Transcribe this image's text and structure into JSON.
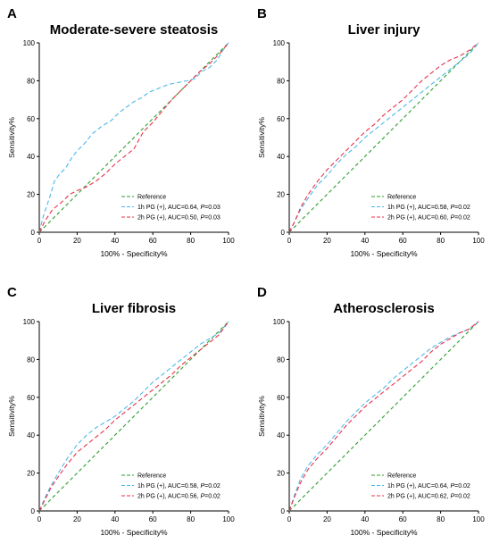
{
  "chart_data": [
    {
      "panel_label": "A",
      "type": "line",
      "title": "Moderate-severe steatosis",
      "xlabel": "100% - Specificity%",
      "ylabel": "Sensitivity%",
      "xlim": [
        0,
        100
      ],
      "ylim": [
        0,
        100
      ],
      "xticks": [
        "0",
        "20",
        "40",
        "60",
        "80",
        "100"
      ],
      "yticks": [
        "0",
        "20",
        "40",
        "60",
        "80",
        "100"
      ],
      "legend": "bottom-right",
      "series": [
        {
          "name": "Reference",
          "color": "#2e9e2e",
          "x": [
            0,
            100
          ],
          "y": [
            0,
            100
          ]
        },
        {
          "name": "1h PG (+), AUC=0.64, P=0.03",
          "label_pre": "1h PG (+), AUC=0.64, ",
          "label_p": "P",
          "label_post": "=0.03",
          "color": "#4db8e8",
          "x": [
            0,
            2,
            4,
            6,
            8,
            11,
            14,
            17,
            20,
            24,
            28,
            33,
            38,
            42,
            46,
            50,
            54,
            58,
            63,
            68,
            73,
            78,
            82,
            86,
            90,
            94,
            97,
            100
          ],
          "y": [
            0,
            8,
            14,
            20,
            27,
            31,
            34,
            39,
            43,
            47,
            52,
            56,
            59,
            63,
            66,
            69,
            71,
            74,
            76,
            78,
            79,
            80,
            81,
            85,
            87,
            91,
            96,
            100
          ]
        },
        {
          "name": "2h PG (+), AUC=0.50, P=0.03",
          "label_pre": "2h PG (+), AUC=0.50, ",
          "label_p": "P",
          "label_post": "=0.03",
          "color": "#e8304a",
          "x": [
            0,
            3,
            7,
            12,
            16,
            20,
            25,
            30,
            35,
            40,
            45,
            50,
            55,
            60,
            65,
            70,
            75,
            80,
            85,
            90,
            95,
            100
          ],
          "y": [
            0,
            6,
            12,
            16,
            20,
            22,
            24,
            27,
            31,
            36,
            40,
            44,
            53,
            58,
            64,
            70,
            75,
            80,
            85,
            89,
            94,
            100
          ]
        }
      ]
    },
    {
      "panel_label": "B",
      "type": "line",
      "title": "Liver injury",
      "xlabel": "100% - Specificity%",
      "ylabel": "Sensitivity%",
      "xlim": [
        0,
        100
      ],
      "ylim": [
        0,
        100
      ],
      "xticks": [
        "0",
        "20",
        "40",
        "60",
        "80",
        "100"
      ],
      "yticks": [
        "0",
        "20",
        "40",
        "60",
        "80",
        "100"
      ],
      "legend": "bottom-right",
      "series": [
        {
          "name": "Reference",
          "color": "#2e9e2e",
          "x": [
            0,
            100
          ],
          "y": [
            0,
            100
          ]
        },
        {
          "name": "1h PG (+), AUC=0.58, P=0.02",
          "label_pre": "1h PG (+), AUC=0.58, ",
          "label_p": "P",
          "label_post": "=0.02",
          "color": "#4db8e8",
          "x": [
            0,
            3,
            6,
            10,
            15,
            20,
            25,
            30,
            35,
            40,
            45,
            50,
            55,
            60,
            65,
            70,
            75,
            80,
            85,
            90,
            95,
            100
          ],
          "y": [
            0,
            6,
            12,
            18,
            25,
            30,
            36,
            41,
            45,
            50,
            54,
            58,
            62,
            66,
            70,
            74,
            78,
            82,
            86,
            90,
            94,
            100
          ]
        },
        {
          "name": "2h PG (+), AUC=0.60, P=0.02",
          "label_pre": "2h PG (+), AUC=0.60, ",
          "label_p": "P",
          "label_post": "=0.02",
          "color": "#e8304a",
          "x": [
            0,
            3,
            6,
            10,
            15,
            20,
            25,
            30,
            35,
            40,
            45,
            50,
            55,
            60,
            65,
            70,
            75,
            80,
            85,
            90,
            95,
            100
          ],
          "y": [
            0,
            6,
            13,
            20,
            27,
            33,
            38,
            43,
            48,
            53,
            57,
            62,
            66,
            70,
            75,
            80,
            84,
            88,
            91,
            93,
            96,
            100
          ]
        }
      ]
    },
    {
      "panel_label": "C",
      "type": "line",
      "title": "Liver fibrosis",
      "xlabel": "100% - Specificity%",
      "ylabel": "Sensitivity%",
      "xlim": [
        0,
        100
      ],
      "ylim": [
        0,
        100
      ],
      "xticks": [
        "0",
        "20",
        "40",
        "60",
        "80",
        "100"
      ],
      "yticks": [
        "0",
        "20",
        "40",
        "60",
        "80",
        "100"
      ],
      "legend": "bottom-right",
      "series": [
        {
          "name": "Reference",
          "color": "#2e9e2e",
          "x": [
            0,
            100
          ],
          "y": [
            0,
            100
          ]
        },
        {
          "name": "1h PG (+), AUC=0.58, P=0.02",
          "label_pre": "1h PG (+), AUC=0.58, ",
          "label_p": "P",
          "label_post": "=0.02",
          "color": "#4db8e8",
          "x": [
            0,
            3,
            6,
            10,
            15,
            20,
            25,
            30,
            35,
            40,
            45,
            50,
            55,
            60,
            65,
            70,
            75,
            80,
            85,
            90,
            95,
            100
          ],
          "y": [
            0,
            7,
            13,
            20,
            28,
            35,
            40,
            44,
            47,
            50,
            54,
            58,
            63,
            68,
            72,
            76,
            80,
            84,
            88,
            91,
            94,
            100
          ]
        },
        {
          "name": "2h PG (+), AUC=0.56, P=0.02",
          "label_pre": "2h PG (+), AUC=0.56, ",
          "label_p": "P",
          "label_post": "=0.02",
          "color": "#e8304a",
          "x": [
            0,
            3,
            6,
            10,
            15,
            20,
            25,
            30,
            35,
            40,
            45,
            50,
            55,
            60,
            65,
            70,
            75,
            80,
            85,
            90,
            95,
            100
          ],
          "y": [
            0,
            6,
            12,
            18,
            25,
            31,
            35,
            39,
            43,
            48,
            52,
            56,
            60,
            64,
            68,
            72,
            77,
            81,
            85,
            89,
            93,
            100
          ]
        }
      ]
    },
    {
      "panel_label": "D",
      "type": "line",
      "title": "Atherosclerosis",
      "xlabel": "100% - Specificity%",
      "ylabel": "Sensitivity%",
      "xlim": [
        0,
        100
      ],
      "ylim": [
        0,
        100
      ],
      "xticks": [
        "0",
        "20",
        "40",
        "60",
        "80",
        "100"
      ],
      "yticks": [
        "0",
        "20",
        "40",
        "60",
        "80",
        "100"
      ],
      "legend": "bottom-right",
      "series": [
        {
          "name": "Reference",
          "color": "#2e9e2e",
          "x": [
            0,
            100
          ],
          "y": [
            0,
            100
          ]
        },
        {
          "name": "1h PG (+), AUC=0.64, P=0.02",
          "label_pre": "1h PG (+), AUC=0.64, ",
          "label_p": "P",
          "label_post": "=0.02",
          "color": "#4db8e8",
          "x": [
            0,
            3,
            6,
            10,
            15,
            20,
            25,
            30,
            35,
            40,
            45,
            50,
            55,
            60,
            65,
            70,
            75,
            80,
            85,
            90,
            95,
            100
          ],
          "y": [
            0,
            9,
            17,
            24,
            30,
            35,
            41,
            47,
            52,
            57,
            61,
            65,
            70,
            74,
            78,
            82,
            86,
            89,
            92,
            94,
            96,
            100
          ]
        },
        {
          "name": "2h PG (+), AUC=0.62, P=0.02",
          "label_pre": "2h PG (+), AUC=0.62, ",
          "label_p": "P",
          "label_post": "=0.02",
          "color": "#e8304a",
          "x": [
            0,
            3,
            6,
            10,
            15,
            20,
            25,
            30,
            35,
            40,
            45,
            50,
            55,
            60,
            65,
            70,
            75,
            80,
            85,
            90,
            95,
            100
          ],
          "y": [
            0,
            8,
            15,
            22,
            28,
            33,
            39,
            45,
            50,
            55,
            59,
            63,
            67,
            71,
            75,
            79,
            84,
            88,
            91,
            94,
            96,
            100
          ]
        }
      ]
    }
  ]
}
